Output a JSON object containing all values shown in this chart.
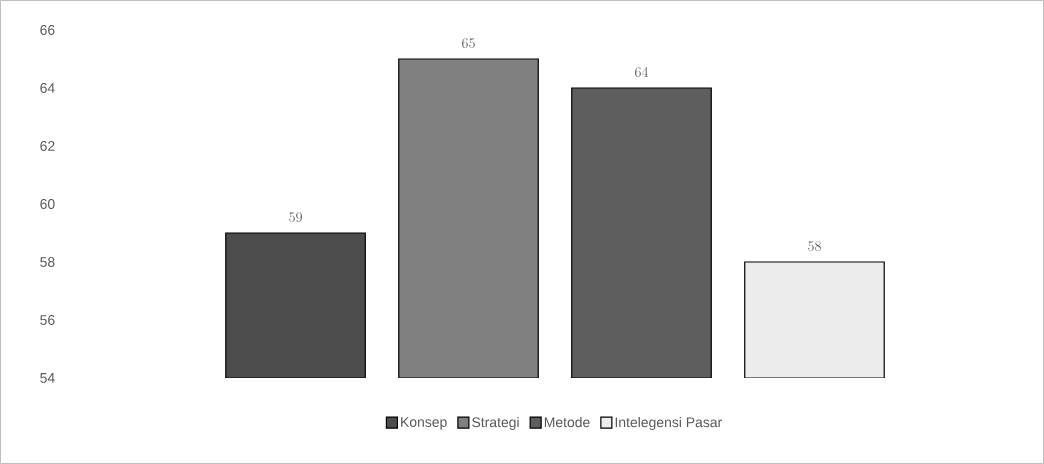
{
  "chart_data": {
    "type": "bar",
    "categories": [
      null
    ],
    "series": [
      {
        "name": "Konsep",
        "color": "#4d4d4d",
        "values": [
          59
        ]
      },
      {
        "name": "Strategi",
        "color": "#808080",
        "values": [
          65
        ]
      },
      {
        "name": "Metode",
        "color": "#5e5e5e",
        "values": [
          64
        ]
      },
      {
        "name": "Intelegensi Pasar",
        "color": "#ececec",
        "values": [
          58
        ]
      }
    ],
    "ylim": [
      54,
      66
    ],
    "yticks": [
      54,
      56,
      58,
      60,
      62,
      64,
      66
    ],
    "grid": false,
    "legend": "bottom",
    "data_labels": true
  }
}
